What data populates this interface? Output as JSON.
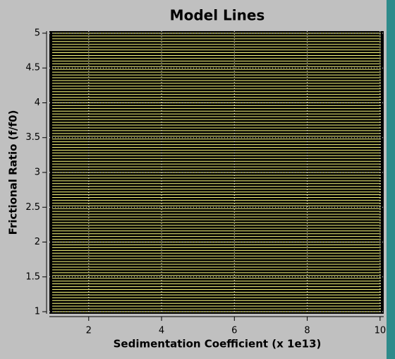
{
  "chart_data": {
    "type": "hlines",
    "title": "Model Lines",
    "x_label": "Sedimentation Coefficient (x 1e13)",
    "y_label": "Frictional Ratio (f/f0)",
    "xlim": [
      0.92,
      10.1
    ],
    "xticks": [
      2,
      4,
      6,
      8,
      10
    ],
    "ylim": [
      0.97,
      5.03
    ],
    "yticks": [
      1,
      1.5,
      2,
      2.5,
      3,
      3.5,
      4,
      4.5,
      5
    ],
    "grid": true,
    "color": "#ffff80",
    "values": [
      1,
      1.04,
      1.08,
      1.12,
      1.16,
      1.2,
      1.24,
      1.28,
      1.32,
      1.36,
      1.4,
      1.44,
      1.48,
      1.52,
      1.56,
      1.6,
      1.64,
      1.68,
      1.72,
      1.76,
      1.8,
      1.84,
      1.88,
      1.92,
      1.96,
      2,
      2.04,
      2.08,
      2.12,
      2.16,
      2.2,
      2.24,
      2.28,
      2.32,
      2.36,
      2.4,
      2.44,
      2.48,
      2.52,
      2.56,
      2.6,
      2.64,
      2.68,
      2.72,
      2.76,
      2.8,
      2.84,
      2.88,
      2.92,
      2.96,
      3,
      3.04,
      3.08,
      3.12,
      3.16,
      3.2,
      3.24,
      3.28,
      3.32,
      3.36,
      3.4,
      3.44,
      3.48,
      3.52,
      3.56,
      3.6,
      3.64,
      3.68,
      3.72,
      3.76,
      3.8,
      3.84,
      3.88,
      3.92,
      3.96,
      4,
      4.04,
      4.08,
      4.12,
      4.16,
      4.2,
      4.24,
      4.28,
      4.32,
      4.36,
      4.4,
      4.44,
      4.48,
      4.52,
      4.56,
      4.6,
      4.64,
      4.68,
      4.72,
      4.76,
      4.8,
      4.84,
      4.88,
      4.92,
      4.96,
      5
    ]
  }
}
